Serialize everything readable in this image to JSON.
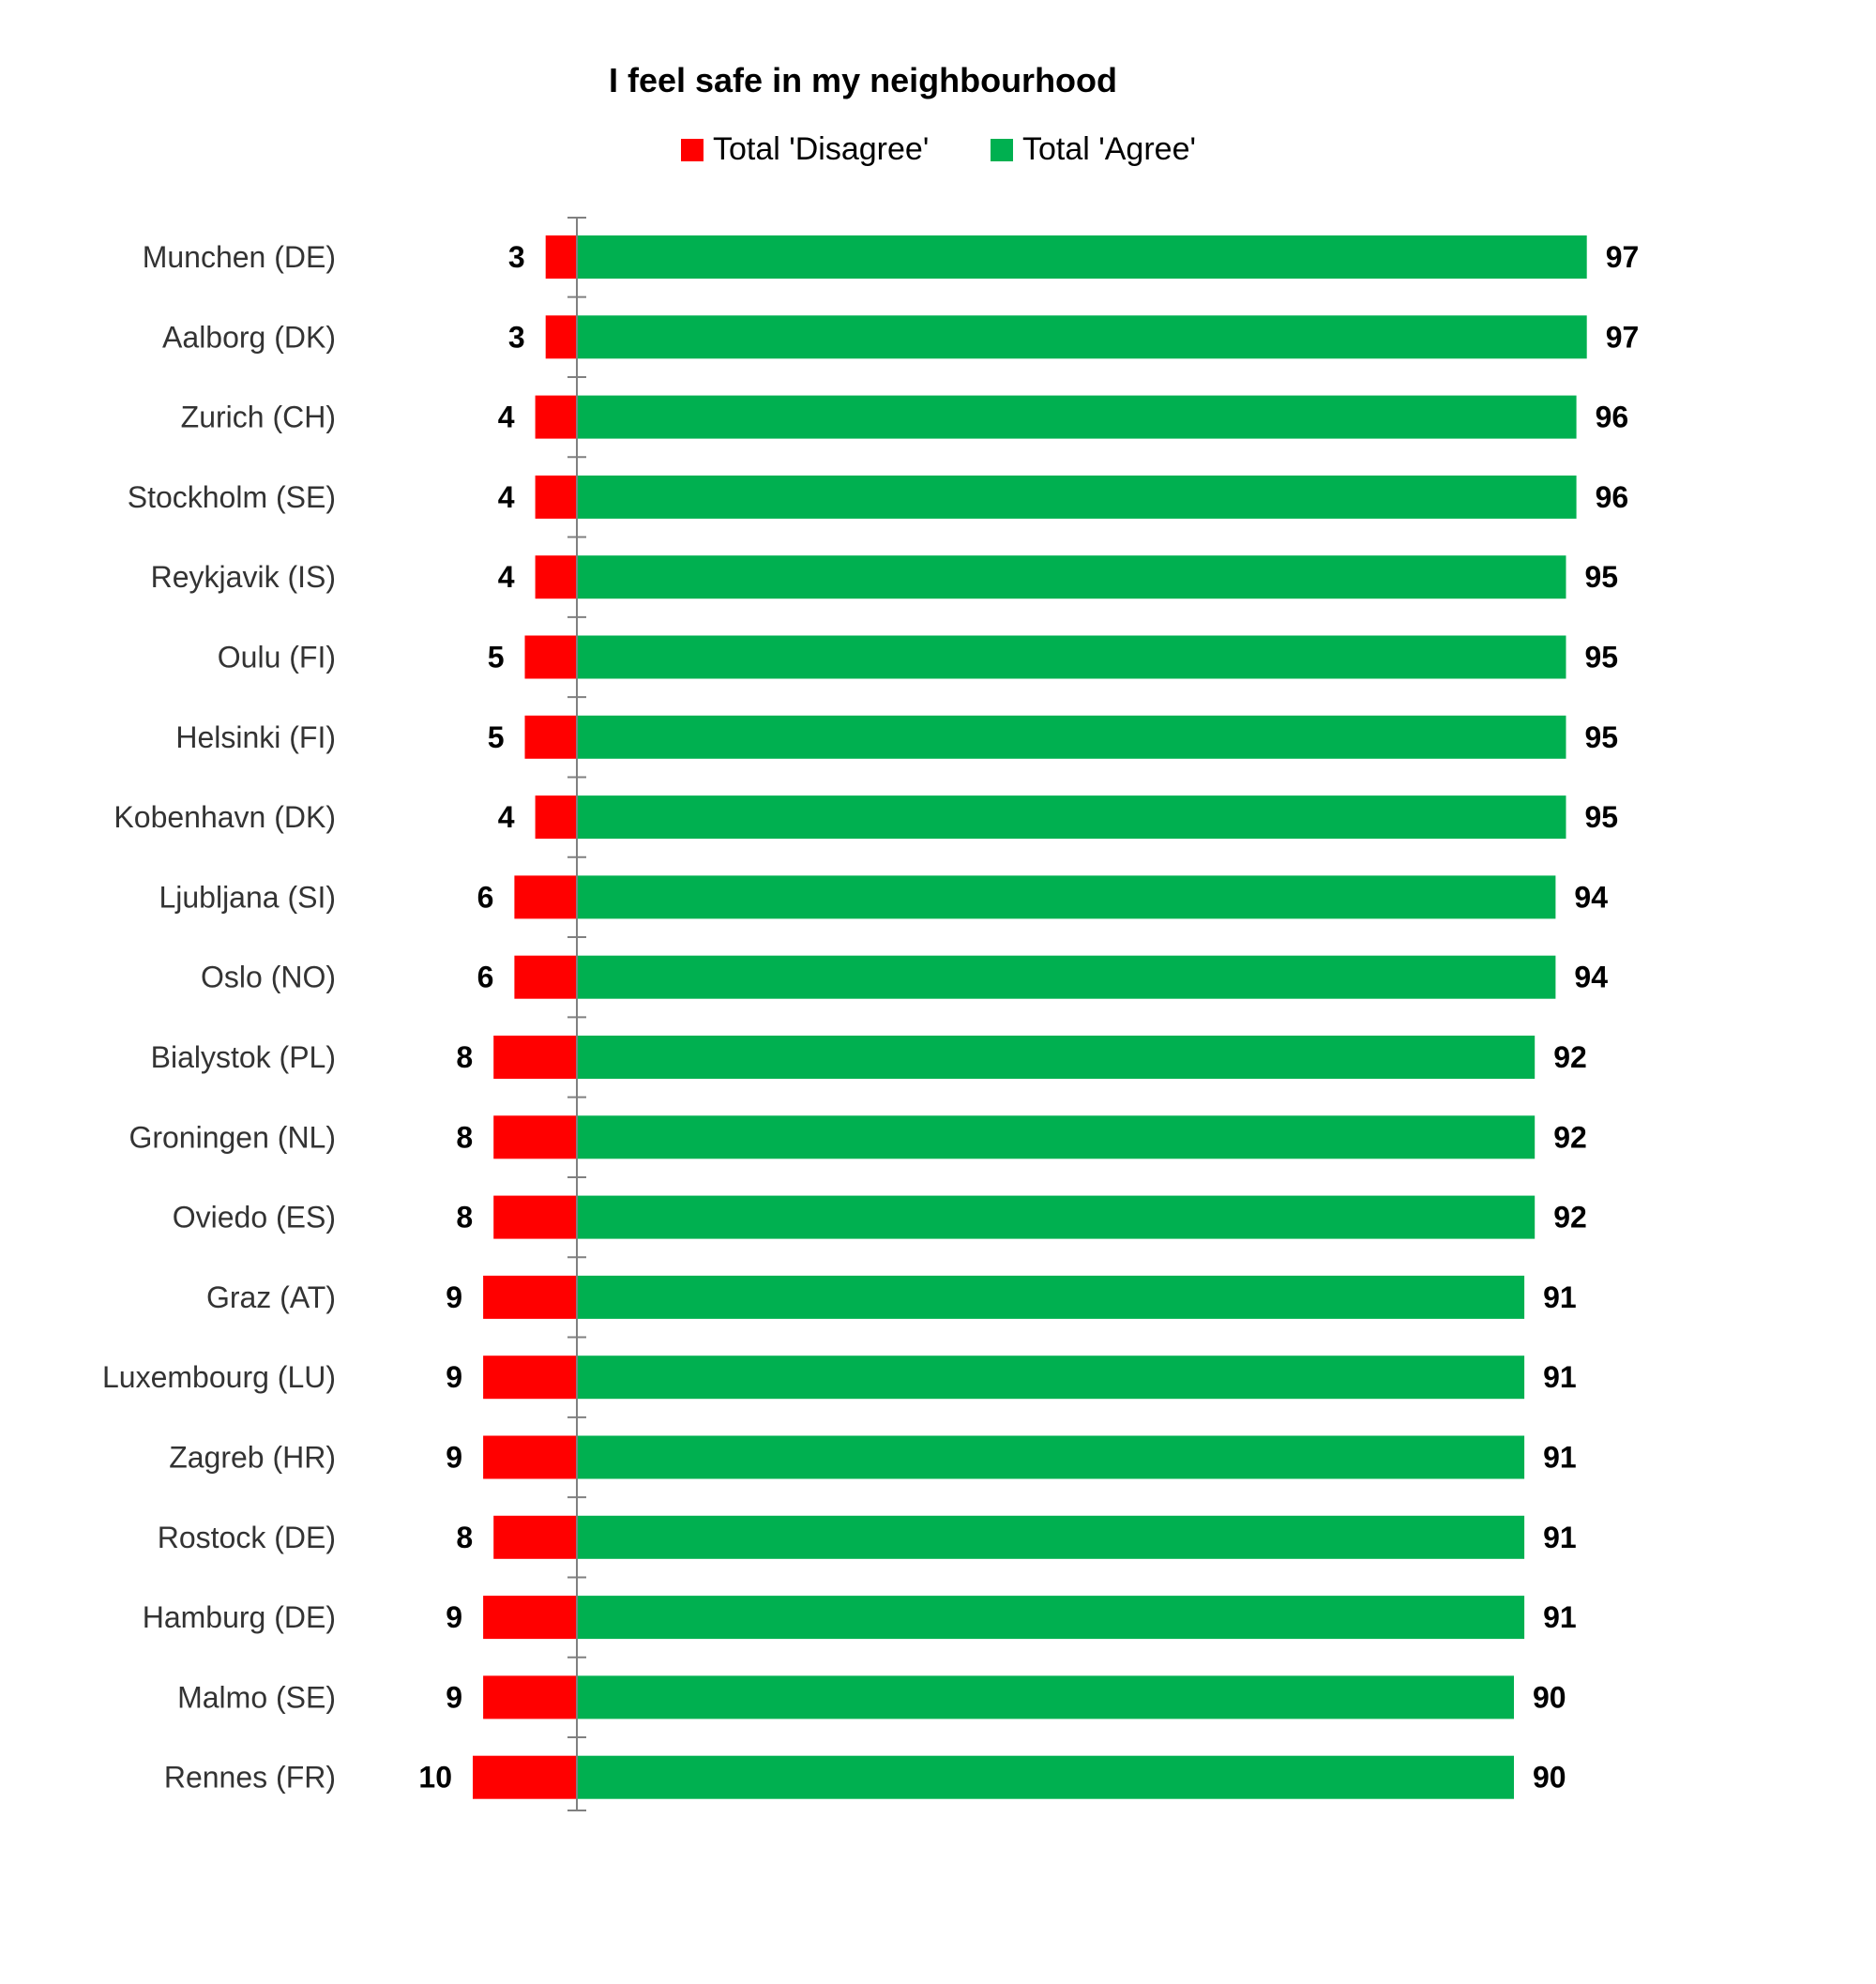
{
  "chart_data": {
    "type": "bar",
    "orientation": "horizontal-diverging",
    "title": "I feel safe in my neighbourhood",
    "legend_position": "top",
    "grid": false,
    "categories": [
      "Munchen (DE)",
      "Aalborg (DK)",
      "Zurich (CH)",
      "Stockholm (SE)",
      "Reykjavik (IS)",
      "Oulu (FI)",
      "Helsinki (FI)",
      "Kobenhavn (DK)",
      "Ljubljana (SI)",
      "Oslo (NO)",
      "Bialystok (PL)",
      "Groningen (NL)",
      "Oviedo (ES)",
      "Graz (AT)",
      "Luxembourg (LU)",
      "Zagreb (HR)",
      "Rostock (DE)",
      "Hamburg (DE)",
      "Malmo (SE)",
      "Rennes (FR)"
    ],
    "series": [
      {
        "name": "Total 'Disagree'",
        "color": "#ff0000",
        "direction": "left",
        "values": [
          3,
          3,
          4,
          4,
          4,
          5,
          5,
          4,
          6,
          6,
          8,
          8,
          8,
          9,
          9,
          9,
          8,
          9,
          9,
          10
        ]
      },
      {
        "name": "Total 'Agree'",
        "color": "#00b050",
        "direction": "right",
        "values": [
          97,
          97,
          96,
          96,
          95,
          95,
          95,
          95,
          94,
          94,
          92,
          92,
          92,
          91,
          91,
          91,
          91,
          91,
          90,
          90
        ]
      }
    ]
  }
}
